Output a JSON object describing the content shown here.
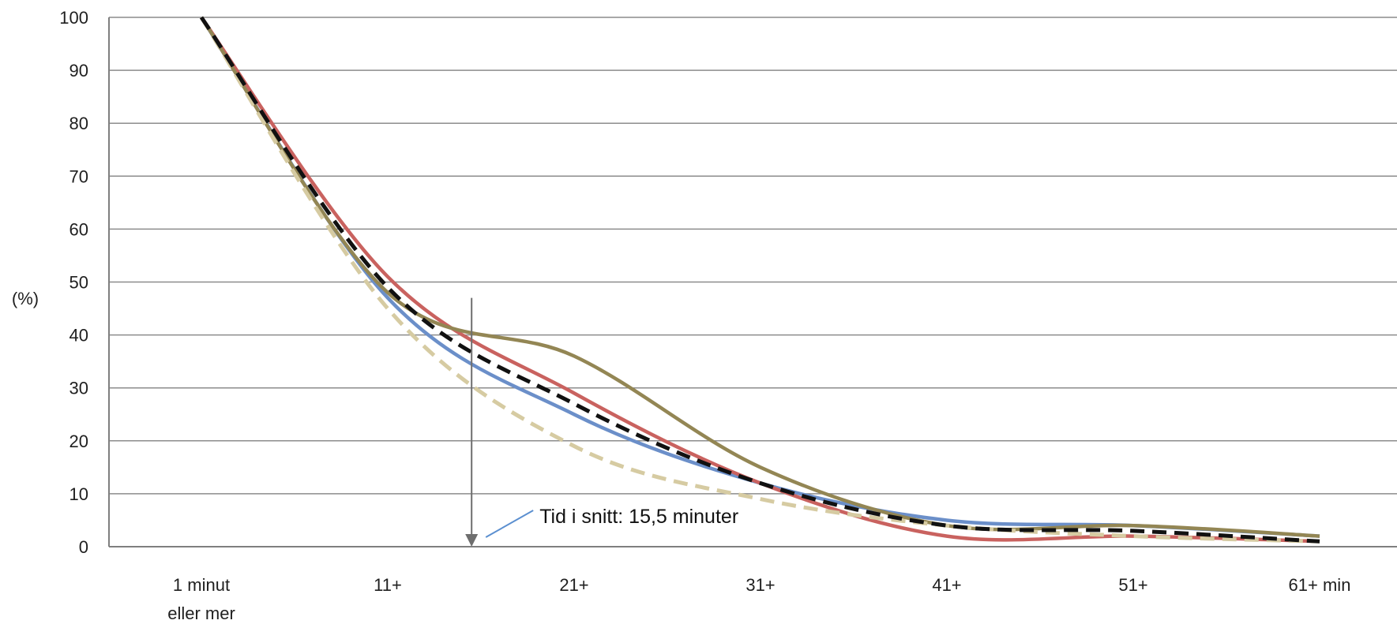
{
  "chart_data": {
    "type": "line",
    "title": "",
    "xlabel": "",
    "ylabel": "(%)",
    "ylim": [
      0,
      100
    ],
    "yticks": [
      0,
      10,
      20,
      30,
      40,
      50,
      60,
      70,
      80,
      90,
      100
    ],
    "grid": true,
    "categories": [
      [
        "1 minut",
        "eller mer"
      ],
      [
        "11+"
      ],
      [
        "21+"
      ],
      [
        "31+"
      ],
      [
        "41+"
      ],
      [
        "51+"
      ],
      [
        "61+ min"
      ]
    ],
    "series": [
      {
        "color": "#6b8fc9",
        "dashed": false,
        "values": [
          100,
          47,
          25,
          12,
          5,
          4,
          2
        ]
      },
      {
        "color": "#c9625f",
        "dashed": false,
        "values": [
          100,
          51,
          29,
          12,
          2,
          2,
          1
        ]
      },
      {
        "color": "#938654",
        "dashed": false,
        "values": [
          100,
          48,
          36,
          15,
          4,
          4,
          2
        ]
      },
      {
        "color": "#d6cba2",
        "dashed": true,
        "values": [
          100,
          45,
          19,
          9,
          4,
          2,
          1
        ]
      },
      {
        "color": "#111111",
        "dashed": true,
        "values": [
          100,
          49,
          27,
          12,
          4,
          3,
          1
        ]
      }
    ],
    "annotation": {
      "text": "Tid i snitt: 15,5 minuter",
      "x_minutes": 15.5,
      "y_top": 47
    }
  }
}
